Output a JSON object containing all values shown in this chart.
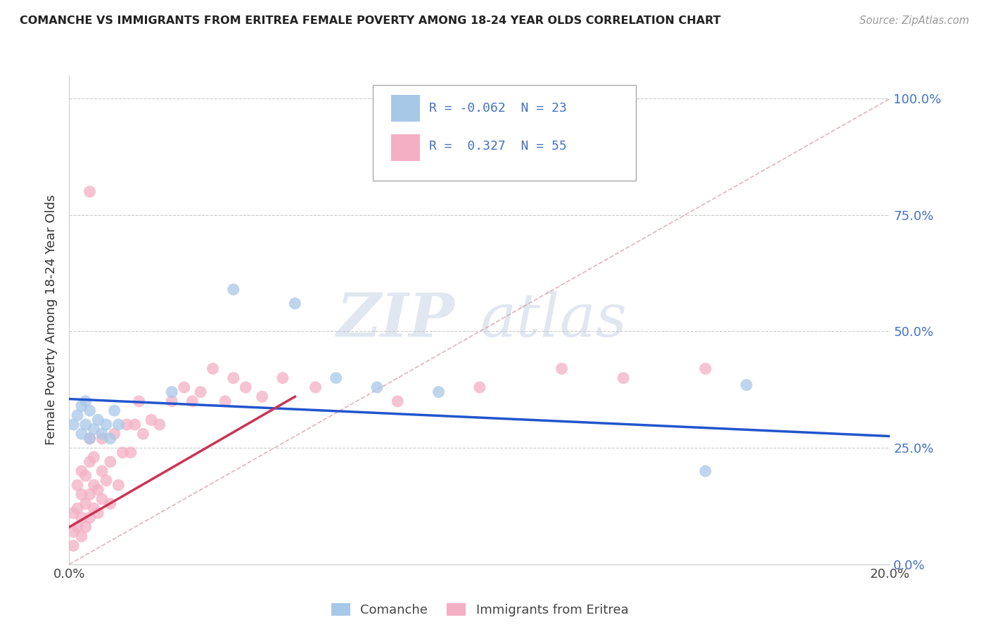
{
  "title": "COMANCHE VS IMMIGRANTS FROM ERITREA FEMALE POVERTY AMONG 18-24 YEAR OLDS CORRELATION CHART",
  "source": "Source: ZipAtlas.com",
  "ylabel": "Female Poverty Among 18-24 Year Olds",
  "xlim": [
    0.0,
    0.2
  ],
  "ylim": [
    0.0,
    1.05
  ],
  "yticks": [
    0.0,
    0.25,
    0.5,
    0.75,
    1.0
  ],
  "ytick_labels": [
    "0.0%",
    "25.0%",
    "50.0%",
    "75.0%",
    "100.0%"
  ],
  "xticks": [
    0.0,
    0.05,
    0.1,
    0.15,
    0.2
  ],
  "xtick_labels": [
    "0.0%",
    "",
    "",
    "",
    "20.0%"
  ],
  "legend_R1": "-0.062",
  "legend_N1": "23",
  "legend_R2": "0.327",
  "legend_N2": "55",
  "comanche_color": "#a8c8e8",
  "eritrea_color": "#f4afc4",
  "trend_color_comanche": "#2255cc",
  "trend_color_eritrea": "#cc3355",
  "ref_line_color": "#dda0a8",
  "watermark_color": "#ccd8e8",
  "background_color": "#ffffff",
  "comanche_x": [
    0.001,
    0.002,
    0.003,
    0.003,
    0.004,
    0.004,
    0.005,
    0.005,
    0.006,
    0.007,
    0.008,
    0.009,
    0.01,
    0.011,
    0.012,
    0.025,
    0.04,
    0.055,
    0.065,
    0.075,
    0.09,
    0.155,
    0.165
  ],
  "comanche_y": [
    0.3,
    0.32,
    0.28,
    0.34,
    0.3,
    0.35,
    0.27,
    0.33,
    0.29,
    0.31,
    0.28,
    0.3,
    0.27,
    0.33,
    0.3,
    0.37,
    0.59,
    0.56,
    0.4,
    0.38,
    0.37,
    0.2,
    0.385
  ],
  "eritrea_x": [
    0.001,
    0.001,
    0.001,
    0.002,
    0.002,
    0.002,
    0.003,
    0.003,
    0.003,
    0.003,
    0.004,
    0.004,
    0.004,
    0.005,
    0.005,
    0.005,
    0.005,
    0.006,
    0.006,
    0.006,
    0.007,
    0.007,
    0.008,
    0.008,
    0.008,
    0.009,
    0.01,
    0.01,
    0.011,
    0.012,
    0.013,
    0.014,
    0.015,
    0.016,
    0.017,
    0.018,
    0.02,
    0.022,
    0.025,
    0.028,
    0.03,
    0.032,
    0.035,
    0.038,
    0.04,
    0.043,
    0.047,
    0.052,
    0.06,
    0.08,
    0.1,
    0.12,
    0.135,
    0.155,
    0.005
  ],
  "eritrea_y": [
    0.04,
    0.07,
    0.11,
    0.08,
    0.12,
    0.17,
    0.06,
    0.1,
    0.15,
    0.2,
    0.08,
    0.13,
    0.19,
    0.1,
    0.15,
    0.22,
    0.27,
    0.12,
    0.17,
    0.23,
    0.11,
    0.16,
    0.14,
    0.2,
    0.27,
    0.18,
    0.13,
    0.22,
    0.28,
    0.17,
    0.24,
    0.3,
    0.24,
    0.3,
    0.35,
    0.28,
    0.31,
    0.3,
    0.35,
    0.38,
    0.35,
    0.37,
    0.42,
    0.35,
    0.4,
    0.38,
    0.36,
    0.4,
    0.38,
    0.35,
    0.38,
    0.42,
    0.4,
    0.42,
    0.8
  ],
  "comanche_trend_x0": 0.0,
  "comanche_trend_y0": 0.355,
  "comanche_trend_x1": 0.2,
  "comanche_trend_y1": 0.275,
  "eritrea_trend_x0": 0.0,
  "eritrea_trend_y0": 0.08,
  "eritrea_trend_x1": 0.055,
  "eritrea_trend_y1": 0.36
}
